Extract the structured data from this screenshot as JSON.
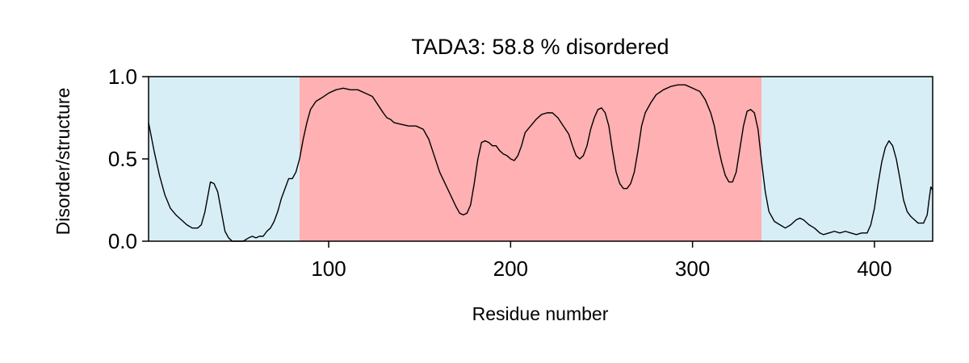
{
  "chart_data": {
    "type": "line",
    "title": "TADA3: 58.8 % disordered",
    "xlabel": "Residue number",
    "ylabel": "Disorder/structure",
    "xlim": [
      1,
      432
    ],
    "ylim": [
      0.0,
      1.0
    ],
    "x_ticks": [
      100,
      200,
      300,
      400
    ],
    "x_tick_labels": [
      "100",
      "200",
      "300",
      "400"
    ],
    "y_ticks": [
      0.0,
      0.5,
      1.0
    ],
    "y_tick_labels": [
      "0.0",
      "0.5",
      "1.0"
    ],
    "grid": false,
    "regions": [
      {
        "type": "structured",
        "start": 1,
        "end": 84,
        "color": "#d8eef7"
      },
      {
        "type": "disordered",
        "start": 84,
        "end": 338,
        "color": "#feb0b2"
      },
      {
        "type": "structured",
        "start": 338,
        "end": 432,
        "color": "#d8eef7"
      }
    ],
    "series": [
      {
        "color": "#000000",
        "points": [
          [
            1,
            0.72
          ],
          [
            4,
            0.55
          ],
          [
            7,
            0.4
          ],
          [
            10,
            0.28
          ],
          [
            13,
            0.2
          ],
          [
            16,
            0.16
          ],
          [
            19,
            0.13
          ],
          [
            22,
            0.1
          ],
          [
            25,
            0.08
          ],
          [
            28,
            0.08
          ],
          [
            30,
            0.1
          ],
          [
            32,
            0.18
          ],
          [
            34,
            0.3
          ],
          [
            35,
            0.36
          ],
          [
            37,
            0.35
          ],
          [
            39,
            0.3
          ],
          [
            41,
            0.18
          ],
          [
            43,
            0.06
          ],
          [
            45,
            0.02
          ],
          [
            47,
            0.0
          ],
          [
            50,
            0.0
          ],
          [
            53,
            0.0
          ],
          [
            56,
            0.02
          ],
          [
            58,
            0.03
          ],
          [
            60,
            0.02
          ],
          [
            62,
            0.03
          ],
          [
            64,
            0.03
          ],
          [
            66,
            0.06
          ],
          [
            68,
            0.08
          ],
          [
            70,
            0.12
          ],
          [
            72,
            0.18
          ],
          [
            74,
            0.26
          ],
          [
            76,
            0.32
          ],
          [
            78,
            0.38
          ],
          [
            80,
            0.38
          ],
          [
            82,
            0.42
          ],
          [
            84,
            0.5
          ],
          [
            86,
            0.62
          ],
          [
            88,
            0.72
          ],
          [
            90,
            0.8
          ],
          [
            93,
            0.85
          ],
          [
            96,
            0.87
          ],
          [
            100,
            0.9
          ],
          [
            104,
            0.92
          ],
          [
            108,
            0.93
          ],
          [
            112,
            0.92
          ],
          [
            116,
            0.92
          ],
          [
            120,
            0.9
          ],
          [
            124,
            0.88
          ],
          [
            127,
            0.83
          ],
          [
            130,
            0.78
          ],
          [
            132,
            0.75
          ],
          [
            134,
            0.74
          ],
          [
            136,
            0.72
          ],
          [
            140,
            0.71
          ],
          [
            144,
            0.7
          ],
          [
            148,
            0.7
          ],
          [
            152,
            0.68
          ],
          [
            155,
            0.62
          ],
          [
            158,
            0.52
          ],
          [
            161,
            0.42
          ],
          [
            164,
            0.35
          ],
          [
            167,
            0.28
          ],
          [
            170,
            0.21
          ],
          [
            172,
            0.17
          ],
          [
            174,
            0.16
          ],
          [
            176,
            0.17
          ],
          [
            178,
            0.22
          ],
          [
            180,
            0.35
          ],
          [
            182,
            0.5
          ],
          [
            184,
            0.6
          ],
          [
            186,
            0.61
          ],
          [
            188,
            0.6
          ],
          [
            190,
            0.58
          ],
          [
            192,
            0.58
          ],
          [
            194,
            0.55
          ],
          [
            196,
            0.53
          ],
          [
            198,
            0.52
          ],
          [
            200,
            0.5
          ],
          [
            202,
            0.49
          ],
          [
            204,
            0.52
          ],
          [
            206,
            0.58
          ],
          [
            208,
            0.66
          ],
          [
            211,
            0.7
          ],
          [
            214,
            0.74
          ],
          [
            217,
            0.77
          ],
          [
            220,
            0.78
          ],
          [
            223,
            0.78
          ],
          [
            226,
            0.75
          ],
          [
            229,
            0.7
          ],
          [
            232,
            0.65
          ],
          [
            234,
            0.58
          ],
          [
            236,
            0.52
          ],
          [
            238,
            0.5
          ],
          [
            240,
            0.52
          ],
          [
            242,
            0.58
          ],
          [
            244,
            0.68
          ],
          [
            246,
            0.75
          ],
          [
            248,
            0.8
          ],
          [
            250,
            0.81
          ],
          [
            252,
            0.78
          ],
          [
            254,
            0.7
          ],
          [
            256,
            0.55
          ],
          [
            258,
            0.42
          ],
          [
            260,
            0.35
          ],
          [
            262,
            0.32
          ],
          [
            264,
            0.32
          ],
          [
            266,
            0.35
          ],
          [
            268,
            0.42
          ],
          [
            270,
            0.55
          ],
          [
            272,
            0.7
          ],
          [
            274,
            0.78
          ],
          [
            277,
            0.84
          ],
          [
            280,
            0.89
          ],
          [
            284,
            0.92
          ],
          [
            288,
            0.94
          ],
          [
            292,
            0.95
          ],
          [
            296,
            0.95
          ],
          [
            300,
            0.93
          ],
          [
            304,
            0.91
          ],
          [
            307,
            0.86
          ],
          [
            310,
            0.78
          ],
          [
            312,
            0.7
          ],
          [
            314,
            0.58
          ],
          [
            316,
            0.48
          ],
          [
            318,
            0.4
          ],
          [
            320,
            0.36
          ],
          [
            322,
            0.36
          ],
          [
            324,
            0.42
          ],
          [
            326,
            0.56
          ],
          [
            328,
            0.7
          ],
          [
            330,
            0.79
          ],
          [
            332,
            0.8
          ],
          [
            334,
            0.78
          ],
          [
            336,
            0.68
          ],
          [
            338,
            0.48
          ],
          [
            340,
            0.3
          ],
          [
            342,
            0.18
          ],
          [
            345,
            0.12
          ],
          [
            348,
            0.1
          ],
          [
            351,
            0.08
          ],
          [
            354,
            0.1
          ],
          [
            357,
            0.13
          ],
          [
            359,
            0.14
          ],
          [
            361,
            0.13
          ],
          [
            364,
            0.1
          ],
          [
            367,
            0.08
          ],
          [
            370,
            0.05
          ],
          [
            372,
            0.04
          ],
          [
            375,
            0.05
          ],
          [
            378,
            0.06
          ],
          [
            381,
            0.05
          ],
          [
            384,
            0.06
          ],
          [
            387,
            0.05
          ],
          [
            390,
            0.04
          ],
          [
            393,
            0.05
          ],
          [
            396,
            0.05
          ],
          [
            398,
            0.1
          ],
          [
            400,
            0.2
          ],
          [
            402,
            0.35
          ],
          [
            404,
            0.48
          ],
          [
            406,
            0.57
          ],
          [
            408,
            0.61
          ],
          [
            410,
            0.58
          ],
          [
            412,
            0.5
          ],
          [
            414,
            0.38
          ],
          [
            416,
            0.25
          ],
          [
            418,
            0.18
          ],
          [
            420,
            0.15
          ],
          [
            422,
            0.13
          ],
          [
            424,
            0.11
          ],
          [
            427,
            0.11
          ],
          [
            429,
            0.16
          ],
          [
            430,
            0.25
          ],
          [
            431,
            0.33
          ],
          [
            432,
            0.31
          ]
        ]
      }
    ]
  }
}
